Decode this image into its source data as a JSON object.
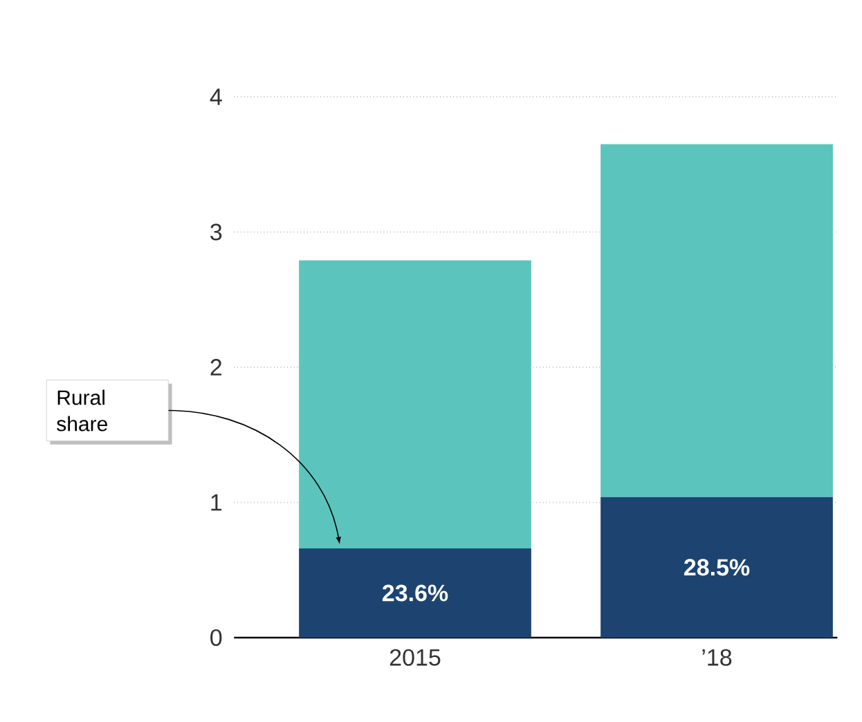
{
  "chart_data": {
    "type": "bar",
    "stacked": true,
    "categories": [
      "2015",
      "’18"
    ],
    "series": [
      {
        "color": "#1d4471",
        "values": [
          0.66,
          1.04
        ]
      },
      {
        "color": "#5bc4bd",
        "values": [
          2.13,
          2.61
        ]
      }
    ],
    "ylim": [
      0,
      4
    ],
    "yticks": [
      0,
      1,
      2,
      3,
      4
    ],
    "grid": "y",
    "annotations": [
      "Rural share",
      "23.6%",
      "28.5%"
    ]
  }
}
